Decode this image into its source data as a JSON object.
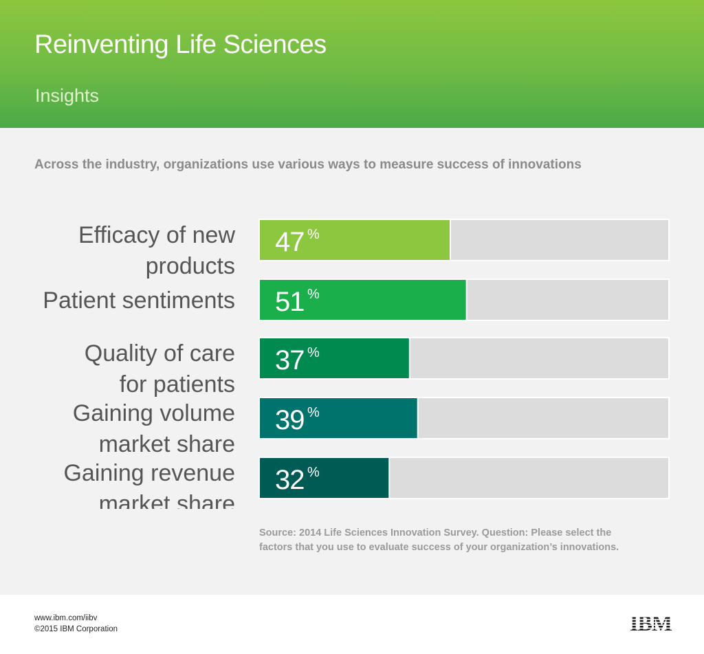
{
  "header": {
    "title": "Reinventing Life Sciences",
    "subtitle": "Insights"
  },
  "intro": "Across the industry, organizations use various ways to measure success of innovations",
  "chart_data": {
    "type": "bar",
    "orientation": "horizontal",
    "title": "Across the industry, organizations use various ways to measure success of innovations",
    "xlim": [
      0,
      100
    ],
    "unit": "%",
    "categories": [
      [
        "Efficacy of new",
        "products"
      ],
      [
        "Patient sentiments"
      ],
      [
        "Quality of care",
        "for patients"
      ],
      [
        "Gaining volume",
        "market share"
      ],
      [
        "Gaining revenue",
        "market share"
      ]
    ],
    "values": [
      47,
      51,
      37,
      39,
      32
    ],
    "colors": [
      "#8dc63f",
      "#1aaf4b",
      "#008a50",
      "#00736c",
      "#005b55"
    ],
    "track_color": "#dcdcdc"
  },
  "source": "Source: 2014 Life Sciences Innovation Survey. Question: Please select the factors that you use to evaluate success of your organization’s innovations.",
  "footer": {
    "url": "www.ibm.com/iibv",
    "copyright": "©2015 IBM Corporation",
    "logo_text": "IBM"
  }
}
